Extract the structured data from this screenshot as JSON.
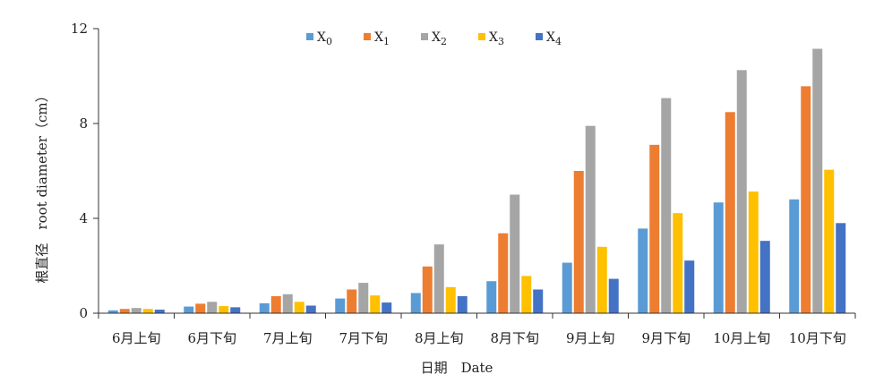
{
  "chart_data": {
    "type": "bar",
    "xlabel": "日期　Date",
    "ylabel": "根直径　root diameter（cm）",
    "ylim": [
      0,
      12
    ],
    "yticks": [
      0,
      4,
      8,
      12
    ],
    "grid": false,
    "legend_position": "top-center",
    "categories": [
      "6月上旬",
      "6月下旬",
      "7月上旬",
      "7月下旬",
      "8月上旬",
      "8月下旬",
      "9月上旬",
      "9月下旬",
      "10月上旬",
      "10月下旬"
    ],
    "series": [
      {
        "name": "X",
        "subscript": "0",
        "color": "#5b9bd5",
        "values": [
          0.12,
          0.28,
          0.42,
          0.62,
          0.85,
          1.35,
          2.13,
          3.57,
          4.67,
          4.8
        ]
      },
      {
        "name": "X",
        "subscript": "1",
        "color": "#ed7d31",
        "values": [
          0.18,
          0.4,
          0.72,
          1.0,
          1.97,
          3.37,
          6.0,
          7.1,
          8.48,
          9.57
        ]
      },
      {
        "name": "X",
        "subscript": "2",
        "color": "#a5a5a5",
        "values": [
          0.22,
          0.48,
          0.8,
          1.28,
          2.9,
          5.0,
          7.9,
          9.07,
          10.25,
          11.15
        ]
      },
      {
        "name": "X",
        "subscript": "3",
        "color": "#ffc000",
        "values": [
          0.18,
          0.3,
          0.48,
          0.75,
          1.1,
          1.57,
          2.8,
          4.22,
          5.13,
          6.05
        ]
      },
      {
        "name": "X",
        "subscript": "4",
        "color": "#4472c4",
        "values": [
          0.15,
          0.25,
          0.32,
          0.45,
          0.72,
          1.0,
          1.45,
          2.22,
          3.05,
          3.8
        ]
      }
    ]
  }
}
